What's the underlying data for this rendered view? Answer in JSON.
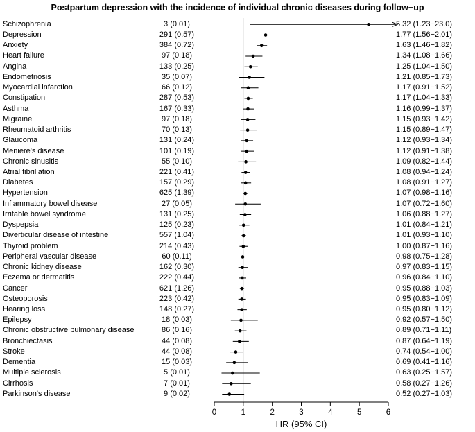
{
  "chart_data": {
    "type": "forest",
    "title": "Postpartum depression with the incidence of individual chronic diseases during follow−up",
    "xlabel": "HR (95% CI)",
    "xlim": [
      0,
      6
    ],
    "xticks": [
      0,
      1,
      2,
      3,
      4,
      5,
      6
    ],
    "reference_line": 1,
    "rows": [
      {
        "label": "Schizophrenia",
        "count": "3 (0.01)",
        "hr": 5.32,
        "lo": 1.23,
        "hi": 23.0,
        "hr_text": "5.32 (1.23−23.0)"
      },
      {
        "label": "Depression",
        "count": "291 (0.57)",
        "hr": 1.77,
        "lo": 1.56,
        "hi": 2.01,
        "hr_text": "1.77 (1.56−2.01)"
      },
      {
        "label": "Anxiety",
        "count": "384 (0.72)",
        "hr": 1.63,
        "lo": 1.46,
        "hi": 1.82,
        "hr_text": "1.63 (1.46−1.82)"
      },
      {
        "label": "Heart failure",
        "count": "97 (0.18)",
        "hr": 1.34,
        "lo": 1.08,
        "hi": 1.66,
        "hr_text": "1.34 (1.08−1.66)"
      },
      {
        "label": "Angina",
        "count": "133 (0.25)",
        "hr": 1.25,
        "lo": 1.04,
        "hi": 1.5,
        "hr_text": "1.25 (1.04−1.50)"
      },
      {
        "label": "Endometriosis",
        "count": "35 (0.07)",
        "hr": 1.21,
        "lo": 0.85,
        "hi": 1.73,
        "hr_text": "1.21 (0.85−1.73)"
      },
      {
        "label": "Myocardial infarction",
        "count": "66 (0.12)",
        "hr": 1.17,
        "lo": 0.91,
        "hi": 1.52,
        "hr_text": "1.17 (0.91−1.52)"
      },
      {
        "label": "Constipation",
        "count": "287 (0.53)",
        "hr": 1.17,
        "lo": 1.04,
        "hi": 1.33,
        "hr_text": "1.17 (1.04−1.33)"
      },
      {
        "label": "Asthma",
        "count": "167 (0.33)",
        "hr": 1.16,
        "lo": 0.99,
        "hi": 1.37,
        "hr_text": "1.16 (0.99−1.37)"
      },
      {
        "label": "Migraine",
        "count": "97 (0.18)",
        "hr": 1.15,
        "lo": 0.93,
        "hi": 1.42,
        "hr_text": "1.15 (0.93−1.42)"
      },
      {
        "label": "Rheumatoid arthritis",
        "count": "70 (0.13)",
        "hr": 1.15,
        "lo": 0.89,
        "hi": 1.47,
        "hr_text": "1.15 (0.89−1.47)"
      },
      {
        "label": "Glaucoma",
        "count": "131 (0.24)",
        "hr": 1.12,
        "lo": 0.93,
        "hi": 1.34,
        "hr_text": "1.12 (0.93−1.34)"
      },
      {
        "label": "Meniere's disease",
        "count": "101 (0.19)",
        "hr": 1.12,
        "lo": 0.91,
        "hi": 1.38,
        "hr_text": "1.12 (0.91−1.38)"
      },
      {
        "label": "Chronic sinusitis",
        "count": "55 (0.10)",
        "hr": 1.09,
        "lo": 0.82,
        "hi": 1.44,
        "hr_text": "1.09 (0.82−1.44)"
      },
      {
        "label": "Atrial fibrillation",
        "count": "221 (0.41)",
        "hr": 1.08,
        "lo": 0.94,
        "hi": 1.24,
        "hr_text": "1.08 (0.94−1.24)"
      },
      {
        "label": "Diabetes",
        "count": "157 (0.29)",
        "hr": 1.08,
        "lo": 0.91,
        "hi": 1.27,
        "hr_text": "1.08 (0.91−1.27)"
      },
      {
        "label": "Hypertension",
        "count": "625 (1.39)",
        "hr": 1.07,
        "lo": 0.98,
        "hi": 1.16,
        "hr_text": "1.07 (0.98−1.16)"
      },
      {
        "label": "Inflammatory bowel disease",
        "count": "27 (0.05)",
        "hr": 1.07,
        "lo": 0.72,
        "hi": 1.6,
        "hr_text": "1.07 (0.72−1.60)"
      },
      {
        "label": "Irritable bowel syndrome",
        "count": "131 (0.25)",
        "hr": 1.06,
        "lo": 0.88,
        "hi": 1.27,
        "hr_text": "1.06 (0.88−1.27)"
      },
      {
        "label": "Dyspepsia",
        "count": "125 (0.23)",
        "hr": 1.01,
        "lo": 0.84,
        "hi": 1.21,
        "hr_text": "1.01 (0.84−1.21)"
      },
      {
        "label": "Diverticular disease of intestine",
        "count": "557 (1.04)",
        "hr": 1.01,
        "lo": 0.93,
        "hi": 1.1,
        "hr_text": "1.01 (0.93−1.10)"
      },
      {
        "label": "Thyroid problem",
        "count": "214 (0.43)",
        "hr": 1.0,
        "lo": 0.87,
        "hi": 1.16,
        "hr_text": "1.00 (0.87−1.16)"
      },
      {
        "label": "Peripheral vascular disease",
        "count": "60 (0.11)",
        "hr": 0.98,
        "lo": 0.75,
        "hi": 1.28,
        "hr_text": "0.98 (0.75−1.28)"
      },
      {
        "label": "Chronic kidney disease",
        "count": "162 (0.30)",
        "hr": 0.97,
        "lo": 0.83,
        "hi": 1.15,
        "hr_text": "0.97 (0.83−1.15)"
      },
      {
        "label": "Eczema or dermatitis",
        "count": "222 (0.44)",
        "hr": 0.96,
        "lo": 0.84,
        "hi": 1.1,
        "hr_text": "0.96 (0.84−1.10)"
      },
      {
        "label": "Cancer",
        "count": "621 (1.26)",
        "hr": 0.95,
        "lo": 0.88,
        "hi": 1.03,
        "hr_text": "0.95 (0.88−1.03)"
      },
      {
        "label": "Osteoporosis",
        "count": "223 (0.42)",
        "hr": 0.95,
        "lo": 0.83,
        "hi": 1.09,
        "hr_text": "0.95 (0.83−1.09)"
      },
      {
        "label": "Hearing loss",
        "count": "148 (0.27)",
        "hr": 0.95,
        "lo": 0.8,
        "hi": 1.12,
        "hr_text": "0.95 (0.80−1.12)"
      },
      {
        "label": "Epilepsy",
        "count": "18 (0.03)",
        "hr": 0.92,
        "lo": 0.57,
        "hi": 1.5,
        "hr_text": "0.92 (0.57−1.50)"
      },
      {
        "label": "Chronic obstructive pulmonary disease",
        "count": "86 (0.16)",
        "hr": 0.89,
        "lo": 0.71,
        "hi": 1.11,
        "hr_text": "0.89 (0.71−1.11)"
      },
      {
        "label": "Bronchiectasis",
        "count": "44 (0.08)",
        "hr": 0.87,
        "lo": 0.64,
        "hi": 1.19,
        "hr_text": "0.87 (0.64−1.19)"
      },
      {
        "label": "Stroke",
        "count": "44 (0.08)",
        "hr": 0.74,
        "lo": 0.54,
        "hi": 1.0,
        "hr_text": "0.74 (0.54−1.00)"
      },
      {
        "label": "Dementia",
        "count": "15 (0.03)",
        "hr": 0.69,
        "lo": 0.41,
        "hi": 1.16,
        "hr_text": "0.69 (0.41−1.16)"
      },
      {
        "label": "Multiple sclerosis",
        "count": "5 (0.01)",
        "hr": 0.63,
        "lo": 0.25,
        "hi": 1.57,
        "hr_text": "0.63 (0.25−1.57)"
      },
      {
        "label": "Cirrhosis",
        "count": "7 (0.01)",
        "hr": 0.58,
        "lo": 0.27,
        "hi": 1.26,
        "hr_text": "0.58 (0.27−1.26)"
      },
      {
        "label": "Parkinson's disease",
        "count": "9 (0.02)",
        "hr": 0.52,
        "lo": 0.27,
        "hi": 1.03,
        "hr_text": "0.52 (0.27−1.03)"
      }
    ]
  },
  "colors": {
    "marker": "#000000",
    "ci_line": "#000000",
    "reference_line": "#c8c8c8",
    "axis": "#000000",
    "text": "#000000",
    "background": "#ffffff"
  }
}
